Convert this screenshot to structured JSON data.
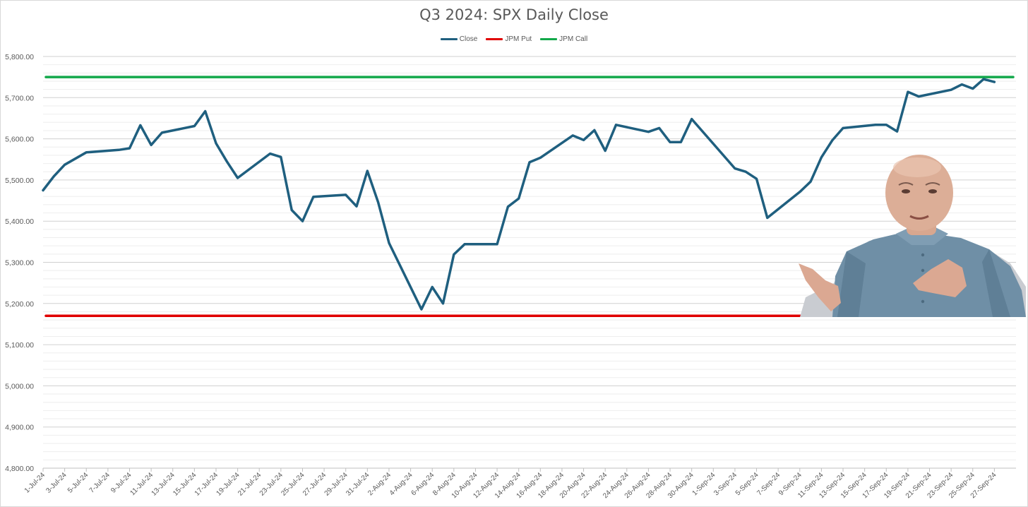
{
  "chart_data": {
    "type": "line",
    "title": "Q3 2024: SPX Daily Close",
    "xlabel": "",
    "ylabel": "",
    "ylim": [
      4800,
      5800
    ],
    "y_ticks": [
      "4,800.00",
      "4,900.00",
      "5,000.00",
      "5,100.00",
      "5,200.00",
      "5,300.00",
      "5,400.00",
      "5,500.00",
      "5,600.00",
      "5,700.00",
      "5,800.00"
    ],
    "x_start": "1-Jul-24",
    "x_end": "29-Sep-24",
    "x_tick_labels": [
      "1-Jul-24",
      "3-Jul-24",
      "5-Jul-24",
      "7-Jul-24",
      "9-Jul-24",
      "11-Jul-24",
      "13-Jul-24",
      "15-Jul-24",
      "17-Jul-24",
      "19-Jul-24",
      "21-Jul-24",
      "23-Jul-24",
      "25-Jul-24",
      "27-Jul-24",
      "29-Jul-24",
      "31-Jul-24",
      "2-Aug-24",
      "4-Aug-24",
      "6-Aug-24",
      "8-Aug-24",
      "10-Aug-24",
      "12-Aug-24",
      "14-Aug-24",
      "16-Aug-24",
      "18-Aug-24",
      "20-Aug-24",
      "22-Aug-24",
      "24-Aug-24",
      "26-Aug-24",
      "28-Aug-24",
      "30-Aug-24",
      "1-Sep-24",
      "3-Sep-24",
      "5-Sep-24",
      "7-Sep-24",
      "9-Sep-24",
      "11-Sep-24",
      "13-Sep-24",
      "15-Sep-24",
      "17-Sep-24",
      "19-Sep-24",
      "21-Sep-24",
      "23-Sep-24",
      "25-Sep-24",
      "27-Sep-24"
    ],
    "gridlines": true,
    "legend_position": "top-center",
    "series": [
      {
        "name": "Close",
        "color": "#1f5f7f",
        "x": [
          "1-Jul-24",
          "2-Jul-24",
          "3-Jul-24",
          "5-Jul-24",
          "8-Jul-24",
          "9-Jul-24",
          "10-Jul-24",
          "11-Jul-24",
          "12-Jul-24",
          "15-Jul-24",
          "16-Jul-24",
          "17-Jul-24",
          "18-Jul-24",
          "19-Jul-24",
          "22-Jul-24",
          "23-Jul-24",
          "24-Jul-24",
          "25-Jul-24",
          "26-Jul-24",
          "29-Jul-24",
          "30-Jul-24",
          "31-Jul-24",
          "1-Aug-24",
          "2-Aug-24",
          "5-Aug-24",
          "6-Aug-24",
          "7-Aug-24",
          "8-Aug-24",
          "9-Aug-24",
          "12-Aug-24",
          "13-Aug-24",
          "14-Aug-24",
          "15-Aug-24",
          "16-Aug-24",
          "19-Aug-24",
          "20-Aug-24",
          "21-Aug-24",
          "22-Aug-24",
          "23-Aug-24",
          "26-Aug-24",
          "27-Aug-24",
          "28-Aug-24",
          "29-Aug-24",
          "30-Aug-24",
          "3-Sep-24",
          "4-Sep-24",
          "5-Sep-24",
          "6-Sep-24",
          "9-Sep-24",
          "10-Sep-24",
          "11-Sep-24",
          "12-Sep-24",
          "13-Sep-24",
          "16-Sep-24",
          "17-Sep-24",
          "18-Sep-24",
          "19-Sep-24",
          "20-Sep-24",
          "23-Sep-24",
          "24-Sep-24",
          "25-Sep-24",
          "26-Sep-24",
          "27-Sep-24"
        ],
        "values": [
          5475,
          5509,
          5537,
          5567,
          5573,
          5577,
          5633,
          5585,
          5615,
          5631,
          5667,
          5589,
          5545,
          5505,
          5564,
          5556,
          5427,
          5400,
          5459,
          5464,
          5436,
          5522,
          5446,
          5347,
          5186,
          5240,
          5200,
          5319,
          5344,
          5344,
          5435,
          5455,
          5543,
          5554,
          5608,
          5597,
          5621,
          5571,
          5634,
          5617,
          5626,
          5592,
          5592,
          5648,
          5528,
          5520,
          5503,
          5408,
          5471,
          5496,
          5555,
          5596,
          5626,
          5634,
          5634,
          5618,
          5714,
          5703,
          5719,
          5732,
          5722,
          5745,
          5738
        ]
      },
      {
        "name": "JPM Put",
        "color": "#e00000",
        "value": 5170
      },
      {
        "name": "JPM Call",
        "color": "#12a84a",
        "value": 5750
      }
    ]
  }
}
